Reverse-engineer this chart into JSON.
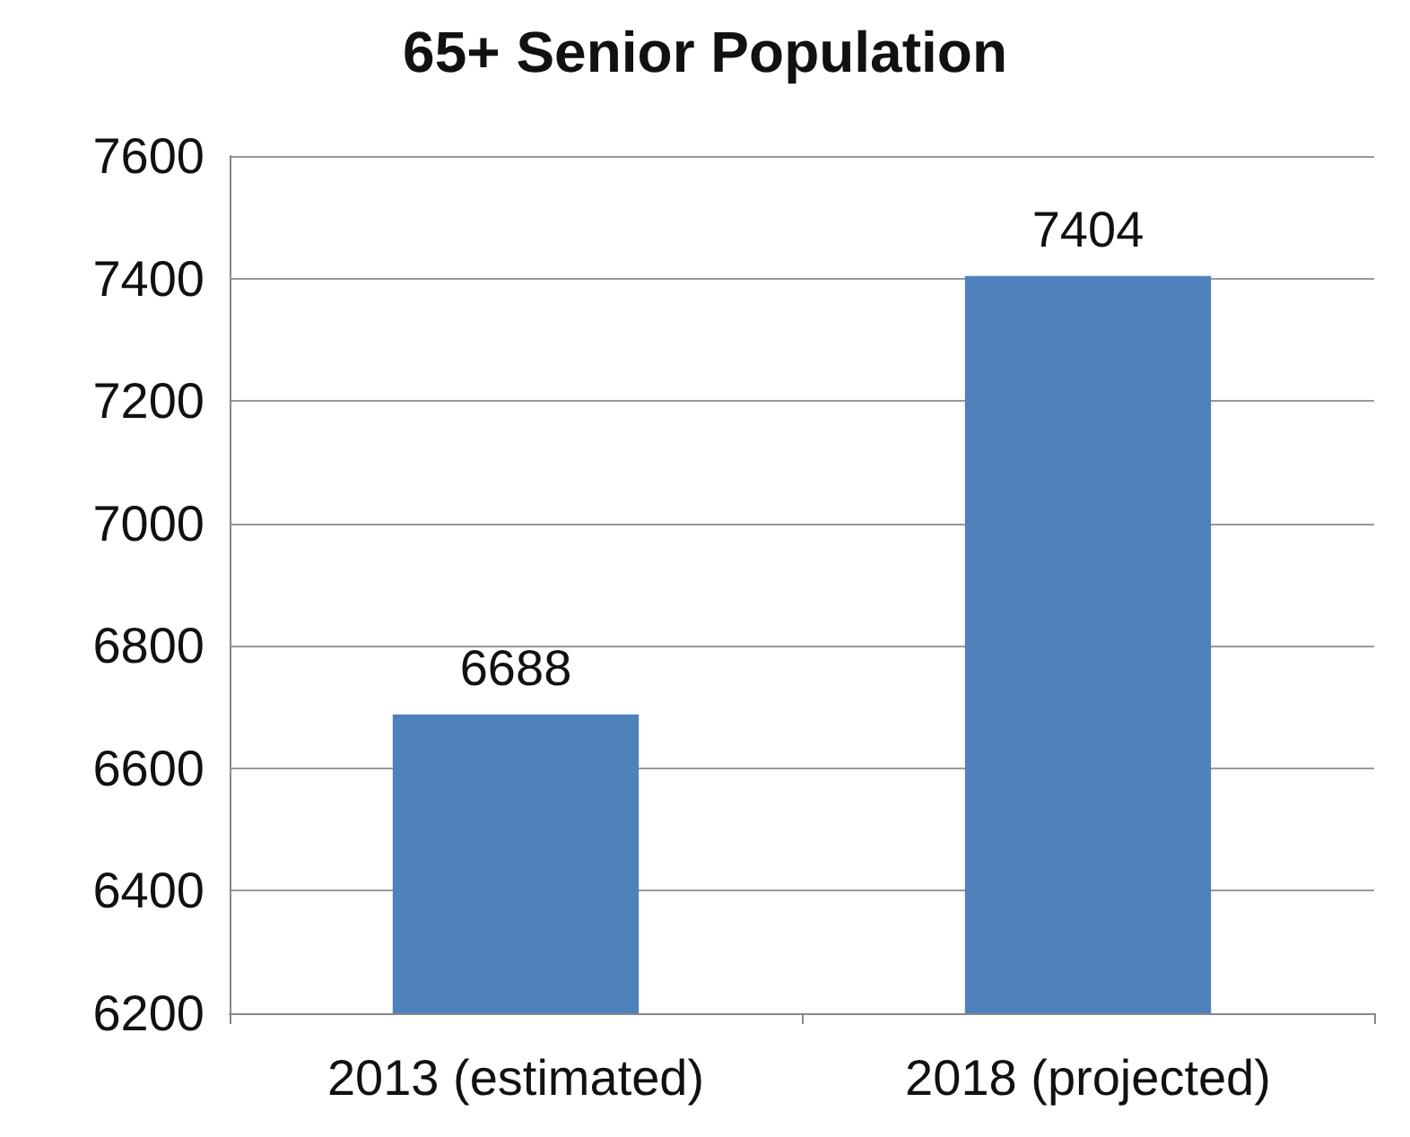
{
  "chart_data": {
    "type": "bar",
    "title": "65+ Senior Population",
    "categories": [
      "2013 (estimated)",
      "2018 (projected)"
    ],
    "values": [
      6688,
      7404
    ],
    "color": "#4f81bd",
    "ylim": [
      6200,
      7600
    ],
    "yticks": [
      6200,
      6400,
      6600,
      6800,
      7000,
      7200,
      7400,
      7600
    ],
    "grid": "y",
    "data_labels": true
  }
}
